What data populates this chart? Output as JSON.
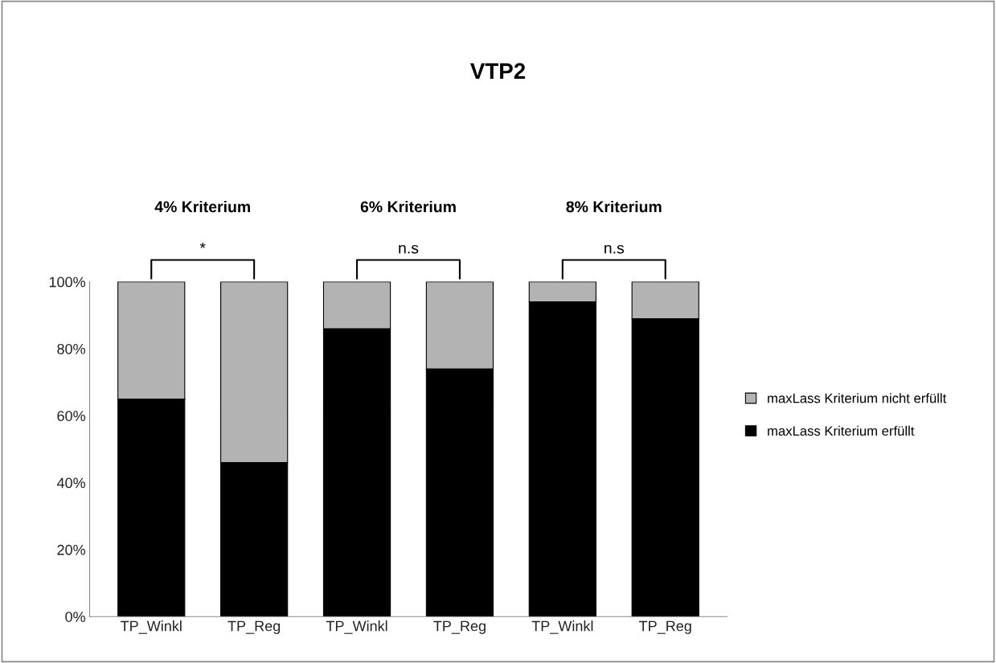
{
  "chart_data": {
    "type": "bar",
    "title": "VTP2",
    "stacked": true,
    "categories": [
      "TP_Winkl",
      "TP_Reg",
      "TP_Winkl",
      "TP_Reg",
      "TP_Winkl",
      "TP_Reg"
    ],
    "series": [
      {
        "name": "maxLass Kriterium erfüllt",
        "color": "#000000",
        "values": [
          65,
          46,
          86,
          74,
          94,
          89
        ]
      },
      {
        "name": "maxLass Kriterium nicht erfüllt",
        "color": "#b3b3b3",
        "values": [
          35,
          54,
          14,
          26,
          6,
          11
        ]
      }
    ],
    "ylim": [
      0,
      100
    ],
    "yticks": [
      {
        "value": 0,
        "label": "0%"
      },
      {
        "value": 20,
        "label": "20%"
      },
      {
        "value": 40,
        "label": "40%"
      },
      {
        "value": 60,
        "label": "60%"
      },
      {
        "value": 80,
        "label": "80%"
      },
      {
        "value": 100,
        "label": "100%"
      }
    ],
    "grid": false,
    "legend": "right",
    "annotations": [
      "4% Kriterium",
      "6% Kriterium",
      "8% Kriterium",
      "*",
      "n.s",
      "n.s"
    ]
  }
}
